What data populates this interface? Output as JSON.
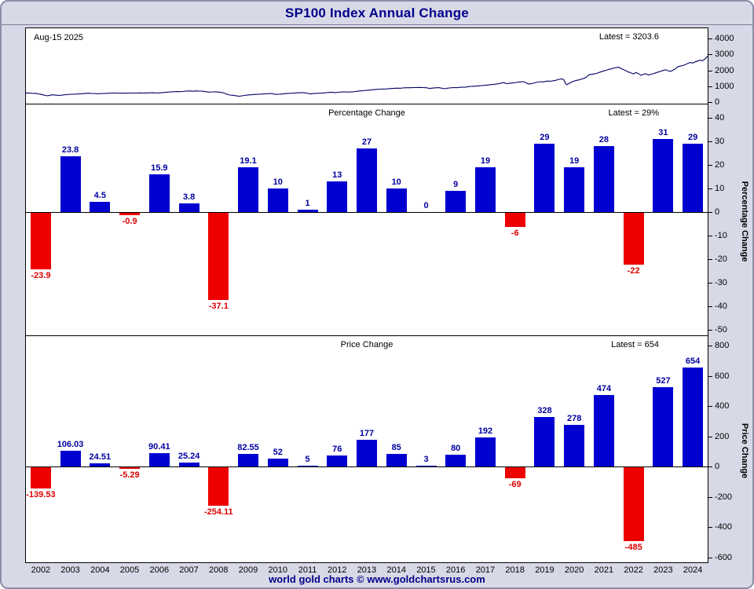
{
  "frame": {
    "title": "SP100 Index Annual Change",
    "footer": "world gold charts © www.goldchartsrus.com"
  },
  "colors": {
    "title_text": "#00008b",
    "frame_background": "#d8d9e6",
    "positive_bar": "#0000d0",
    "negative_bar": "#ee0000",
    "positive_label": "#0000a0",
    "negative_label": "#dd0000",
    "index_line": "#000066"
  },
  "chart_data": [
    {
      "type": "line",
      "date_label": "Aug-15 2025",
      "latest_label": "Latest = 3203.6",
      "latest": 3203.6,
      "ylim": [
        0,
        4000
      ],
      "yticks": [
        4000,
        3000,
        2000,
        1000,
        0
      ],
      "points": [
        [
          2002.0,
          580
        ],
        [
          2002.08,
          562
        ],
        [
          2002.16,
          570
        ],
        [
          2002.25,
          545
        ],
        [
          2002.33,
          552
        ],
        [
          2002.41,
          518
        ],
        [
          2002.5,
          488
        ],
        [
          2002.58,
          452
        ],
        [
          2002.66,
          418
        ],
        [
          2002.73,
          396
        ],
        [
          2002.81,
          432
        ],
        [
          2002.89,
          458
        ],
        [
          2002.96,
          448
        ],
        [
          2003.04,
          436
        ],
        [
          2003.12,
          421
        ],
        [
          2003.2,
          436
        ],
        [
          2003.28,
          456
        ],
        [
          2003.37,
          471
        ],
        [
          2003.45,
          486
        ],
        [
          2003.53,
          492
        ],
        [
          2003.62,
          501
        ],
        [
          2003.7,
          506
        ],
        [
          2003.78,
          513
        ],
        [
          2003.87,
          522
        ],
        [
          2003.95,
          537
        ],
        [
          2004.03,
          546
        ],
        [
          2004.12,
          556
        ],
        [
          2004.2,
          549
        ],
        [
          2004.29,
          541
        ],
        [
          2004.37,
          534
        ],
        [
          2004.45,
          529
        ],
        [
          2004.54,
          533
        ],
        [
          2004.62,
          541
        ],
        [
          2004.7,
          549
        ],
        [
          2004.79,
          556
        ],
        [
          2004.87,
          566
        ],
        [
          2004.95,
          572
        ],
        [
          2005.04,
          565
        ],
        [
          2005.12,
          558
        ],
        [
          2005.2,
          566
        ],
        [
          2005.29,
          561
        ],
        [
          2005.37,
          556
        ],
        [
          2005.45,
          562
        ],
        [
          2005.54,
          569
        ],
        [
          2005.62,
          573
        ],
        [
          2005.7,
          567
        ],
        [
          2005.79,
          571
        ],
        [
          2005.87,
          576
        ],
        [
          2005.95,
          568
        ],
        [
          2006.04,
          572
        ],
        [
          2006.12,
          577
        ],
        [
          2006.2,
          583
        ],
        [
          2006.29,
          589
        ],
        [
          2006.37,
          578
        ],
        [
          2006.45,
          571
        ],
        [
          2006.54,
          583
        ],
        [
          2006.62,
          596
        ],
        [
          2006.7,
          611
        ],
        [
          2006.79,
          626
        ],
        [
          2006.87,
          638
        ],
        [
          2006.95,
          650
        ],
        [
          2007.04,
          656
        ],
        [
          2007.12,
          661
        ],
        [
          2007.2,
          655
        ],
        [
          2007.29,
          669
        ],
        [
          2007.37,
          686
        ],
        [
          2007.45,
          696
        ],
        [
          2007.54,
          701
        ],
        [
          2007.62,
          681
        ],
        [
          2007.7,
          696
        ],
        [
          2007.79,
          701
        ],
        [
          2007.87,
          692
        ],
        [
          2007.95,
          686
        ],
        [
          2008.04,
          661
        ],
        [
          2008.12,
          637
        ],
        [
          2008.2,
          629
        ],
        [
          2008.29,
          641
        ],
        [
          2008.37,
          646
        ],
        [
          2008.45,
          636
        ],
        [
          2008.54,
          621
        ],
        [
          2008.62,
          601
        ],
        [
          2008.7,
          561
        ],
        [
          2008.79,
          491
        ],
        [
          2008.87,
          446
        ],
        [
          2008.95,
          436
        ],
        [
          2009.04,
          416
        ],
        [
          2009.12,
          386
        ],
        [
          2009.2,
          366
        ],
        [
          2009.29,
          396
        ],
        [
          2009.37,
          421
        ],
        [
          2009.45,
          441
        ],
        [
          2009.54,
          456
        ],
        [
          2009.62,
          466
        ],
        [
          2009.7,
          479
        ],
        [
          2009.79,
          489
        ],
        [
          2009.87,
          496
        ],
        [
          2009.95,
          506
        ],
        [
          2010.04,
          512
        ],
        [
          2010.12,
          519
        ],
        [
          2010.2,
          533
        ],
        [
          2010.29,
          541
        ],
        [
          2010.37,
          506
        ],
        [
          2010.45,
          486
        ],
        [
          2010.54,
          493
        ],
        [
          2010.62,
          506
        ],
        [
          2010.7,
          521
        ],
        [
          2010.79,
          536
        ],
        [
          2010.87,
          548
        ],
        [
          2010.95,
          557
        ],
        [
          2011.04,
          566
        ],
        [
          2011.12,
          576
        ],
        [
          2011.2,
          586
        ],
        [
          2011.29,
          593
        ],
        [
          2011.37,
          589
        ],
        [
          2011.45,
          571
        ],
        [
          2011.54,
          531
        ],
        [
          2011.62,
          516
        ],
        [
          2011.7,
          536
        ],
        [
          2011.79,
          549
        ],
        [
          2011.87,
          556
        ],
        [
          2011.95,
          561
        ],
        [
          2012.04,
          571
        ],
        [
          2012.12,
          589
        ],
        [
          2012.2,
          606
        ],
        [
          2012.29,
          623
        ],
        [
          2012.37,
          609
        ],
        [
          2012.45,
          599
        ],
        [
          2012.54,
          616
        ],
        [
          2012.62,
          633
        ],
        [
          2012.7,
          643
        ],
        [
          2012.79,
          637
        ],
        [
          2012.87,
          631
        ],
        [
          2012.95,
          639
        ],
        [
          2013.04,
          649
        ],
        [
          2013.12,
          666
        ],
        [
          2013.2,
          686
        ],
        [
          2013.29,
          701
        ],
        [
          2013.37,
          716
        ],
        [
          2013.45,
          729
        ],
        [
          2013.54,
          746
        ],
        [
          2013.62,
          759
        ],
        [
          2013.7,
          776
        ],
        [
          2013.79,
          796
        ],
        [
          2013.87,
          806
        ],
        [
          2013.95,
          814
        ],
        [
          2014.04,
          819
        ],
        [
          2014.12,
          816
        ],
        [
          2014.2,
          833
        ],
        [
          2014.29,
          849
        ],
        [
          2014.37,
          859
        ],
        [
          2014.45,
          867
        ],
        [
          2014.54,
          879
        ],
        [
          2014.62,
          869
        ],
        [
          2014.7,
          889
        ],
        [
          2014.79,
          899
        ],
        [
          2014.87,
          906
        ],
        [
          2014.95,
          903
        ],
        [
          2015.04,
          909
        ],
        [
          2015.12,
          913
        ],
        [
          2015.2,
          919
        ],
        [
          2015.29,
          923
        ],
        [
          2015.37,
          916
        ],
        [
          2015.45,
          909
        ],
        [
          2015.54,
          896
        ],
        [
          2015.62,
          853
        ],
        [
          2015.7,
          879
        ],
        [
          2015.79,
          896
        ],
        [
          2015.87,
          903
        ],
        [
          2015.95,
          906
        ],
        [
          2016.04,
          869
        ],
        [
          2016.12,
          836
        ],
        [
          2016.2,
          869
        ],
        [
          2016.29,
          889
        ],
        [
          2016.37,
          903
        ],
        [
          2016.45,
          913
        ],
        [
          2016.54,
          906
        ],
        [
          2016.62,
          926
        ],
        [
          2016.7,
          939
        ],
        [
          2016.79,
          933
        ],
        [
          2016.87,
          953
        ],
        [
          2016.95,
          976
        ],
        [
          2017.04,
          989
        ],
        [
          2017.12,
          999
        ],
        [
          2017.2,
          1009
        ],
        [
          2017.29,
          1023
        ],
        [
          2017.37,
          1039
        ],
        [
          2017.45,
          1053
        ],
        [
          2017.54,
          1069
        ],
        [
          2017.62,
          1083
        ],
        [
          2017.7,
          1099
        ],
        [
          2017.79,
          1116
        ],
        [
          2017.87,
          1133
        ],
        [
          2017.95,
          1156
        ],
        [
          2018.04,
          1196
        ],
        [
          2018.12,
          1236
        ],
        [
          2018.2,
          1161
        ],
        [
          2018.29,
          1176
        ],
        [
          2018.37,
          1196
        ],
        [
          2018.45,
          1216
        ],
        [
          2018.54,
          1236
        ],
        [
          2018.62,
          1256
        ],
        [
          2018.7,
          1276
        ],
        [
          2018.79,
          1286
        ],
        [
          2018.87,
          1216
        ],
        [
          2018.95,
          1141
        ],
        [
          2019.04,
          1151
        ],
        [
          2019.12,
          1186
        ],
        [
          2019.2,
          1233
        ],
        [
          2019.29,
          1259
        ],
        [
          2019.37,
          1286
        ],
        [
          2019.45,
          1269
        ],
        [
          2019.54,
          1306
        ],
        [
          2019.62,
          1323
        ],
        [
          2019.7,
          1311
        ],
        [
          2019.79,
          1341
        ],
        [
          2019.87,
          1369
        ],
        [
          2019.95,
          1413
        ],
        [
          2020.0,
          1439
        ],
        [
          2020.08,
          1463
        ],
        [
          2020.14,
          1423
        ],
        [
          2020.21,
          1163
        ],
        [
          2020.25,
          1093
        ],
        [
          2020.33,
          1183
        ],
        [
          2020.41,
          1259
        ],
        [
          2020.5,
          1323
        ],
        [
          2020.58,
          1366
        ],
        [
          2020.66,
          1399
        ],
        [
          2020.75,
          1453
        ],
        [
          2020.83,
          1489
        ],
        [
          2020.91,
          1569
        ],
        [
          2021.0,
          1717
        ],
        [
          2021.08,
          1741
        ],
        [
          2021.16,
          1766
        ],
        [
          2021.25,
          1803
        ],
        [
          2021.33,
          1859
        ],
        [
          2021.41,
          1913
        ],
        [
          2021.5,
          1959
        ],
        [
          2021.58,
          2006
        ],
        [
          2021.66,
          2053
        ],
        [
          2021.75,
          2089
        ],
        [
          2021.83,
          2143
        ],
        [
          2021.91,
          2169
        ],
        [
          2022.0,
          2191
        ],
        [
          2022.08,
          2106
        ],
        [
          2022.16,
          2043
        ],
        [
          2022.25,
          1963
        ],
        [
          2022.33,
          1889
        ],
        [
          2022.41,
          1833
        ],
        [
          2022.5,
          1773
        ],
        [
          2022.58,
          1869
        ],
        [
          2022.66,
          1793
        ],
        [
          2022.75,
          1683
        ],
        [
          2022.83,
          1746
        ],
        [
          2022.91,
          1789
        ],
        [
          2023.0,
          1706
        ],
        [
          2023.08,
          1749
        ],
        [
          2023.16,
          1783
        ],
        [
          2023.25,
          1843
        ],
        [
          2023.33,
          1889
        ],
        [
          2023.41,
          1933
        ],
        [
          2023.5,
          1989
        ],
        [
          2023.58,
          2036
        ],
        [
          2023.66,
          1973
        ],
        [
          2023.75,
          1929
        ],
        [
          2023.83,
          2003
        ],
        [
          2023.91,
          2089
        ],
        [
          2024.0,
          2233
        ],
        [
          2024.08,
          2263
        ],
        [
          2024.16,
          2296
        ],
        [
          2024.25,
          2356
        ],
        [
          2024.33,
          2433
        ],
        [
          2024.41,
          2489
        ],
        [
          2024.5,
          2456
        ],
        [
          2024.58,
          2529
        ],
        [
          2024.66,
          2583
        ],
        [
          2024.75,
          2636
        ],
        [
          2024.83,
          2603
        ],
        [
          2024.91,
          2713
        ],
        [
          2025.0,
          2887
        ],
        [
          2025.08,
          2933
        ],
        [
          2025.14,
          2889
        ],
        [
          2025.2,
          2753
        ],
        [
          2025.26,
          2606
        ],
        [
          2025.32,
          2729
        ],
        [
          2025.4,
          2863
        ],
        [
          2025.48,
          2976
        ],
        [
          2025.54,
          3043
        ],
        [
          2025.58,
          2986
        ],
        [
          2025.63,
          3203.6
        ]
      ]
    },
    {
      "type": "bar",
      "title": "Percentage Change",
      "latest_label": "Latest = 29%",
      "latest": 29,
      "ylabel": "Percentage Change",
      "ylim": [
        -50,
        40
      ],
      "yticks": [
        40,
        30,
        20,
        10,
        0,
        -10,
        -20,
        -30,
        -40,
        -50
      ],
      "categories": [
        "2002",
        "2003",
        "2004",
        "2005",
        "2006",
        "2007",
        "2008",
        "2009",
        "2010",
        "2011",
        "2012",
        "2013",
        "2014",
        "2015",
        "2016",
        "2017",
        "2018",
        "2019",
        "2020",
        "2021",
        "2022",
        "2023",
        "2024"
      ],
      "values": [
        -23.9,
        23.8,
        4.5,
        -0.9,
        15.9,
        3.8,
        -37.1,
        19.1,
        10,
        1,
        13,
        27,
        10,
        0,
        9,
        19,
        -6,
        29,
        19,
        28,
        -22,
        31,
        29
      ]
    },
    {
      "type": "bar",
      "title": "Price Change",
      "latest_label": "Latest = 654",
      "latest": 654,
      "ylabel": "Price Change",
      "ylim": [
        -600,
        800
      ],
      "yticks": [
        800,
        600,
        400,
        200,
        0,
        -200,
        -400,
        -600
      ],
      "categories": [
        "2002",
        "2003",
        "2004",
        "2005",
        "2006",
        "2007",
        "2008",
        "2009",
        "2010",
        "2011",
        "2012",
        "2013",
        "2014",
        "2015",
        "2016",
        "2017",
        "2018",
        "2019",
        "2020",
        "2021",
        "2022",
        "2023",
        "2024"
      ],
      "values": [
        -139.53,
        106.03,
        24.51,
        -5.29,
        90.41,
        25.24,
        -254.11,
        82.55,
        52,
        5,
        76,
        177,
        85,
        3,
        80,
        192,
        -69,
        328,
        278,
        474,
        -485,
        527,
        654
      ]
    }
  ]
}
